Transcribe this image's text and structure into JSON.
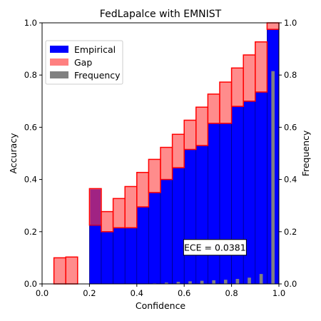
{
  "chart_data": {
    "type": "bar",
    "title": "FedLapalce with EMNIST",
    "xlabel": "Confidence",
    "ylabel": "Accuracy",
    "y2label": "Frequency",
    "xlim": [
      0.0,
      1.0
    ],
    "ylim": [
      0.0,
      1.0
    ],
    "y2lim": [
      0.0,
      1.0
    ],
    "xticks": [
      "0.0",
      "0.2",
      "0.4",
      "0.6",
      "0.8",
      "1.0"
    ],
    "yticks": [
      "0.0",
      "0.2",
      "0.4",
      "0.6",
      "0.8",
      "1.0"
    ],
    "y2ticks": [
      "0.0",
      "0.2",
      "0.4",
      "0.6",
      "0.8",
      "1.0"
    ],
    "bin_width": 0.05,
    "bin_starts": [
      0.05,
      0.1,
      0.2,
      0.25,
      0.3,
      0.35,
      0.4,
      0.45,
      0.5,
      0.55,
      0.6,
      0.65,
      0.7,
      0.75,
      0.8,
      0.85,
      0.9,
      0.95
    ],
    "series": [
      {
        "name": "Empirical",
        "color": "#0000ff",
        "values": [
          0.0,
          0.0,
          0.225,
          0.2,
          0.215,
          0.215,
          0.295,
          0.35,
          0.4,
          0.445,
          0.515,
          0.53,
          0.615,
          0.615,
          0.68,
          0.7,
          0.735,
          0.975
        ]
      },
      {
        "name": "Gap",
        "color": "#ff8080",
        "edge": "#ff0000",
        "bottoms": [
          0.0,
          0.0,
          0.225,
          0.2,
          0.215,
          0.215,
          0.295,
          0.35,
          0.4,
          0.445,
          0.515,
          0.53,
          0.615,
          0.615,
          0.68,
          0.7,
          0.735,
          0.975
        ],
        "tops": [
          0.1,
          0.103,
          0.365,
          0.277,
          0.327,
          0.373,
          0.427,
          0.477,
          0.523,
          0.573,
          0.627,
          0.677,
          0.727,
          0.773,
          0.827,
          0.877,
          0.927,
          1.0
        ]
      },
      {
        "name": "Frequency",
        "color": "#808080",
        "x": [
          0.475,
          0.525,
          0.575,
          0.625,
          0.675,
          0.725,
          0.775,
          0.825,
          0.875,
          0.925,
          0.975
        ],
        "values": [
          0.002,
          0.005,
          0.008,
          0.01,
          0.012,
          0.014,
          0.016,
          0.019,
          0.024,
          0.038,
          0.815
        ]
      }
    ],
    "legend": {
      "position": "upper-left",
      "entries": [
        "Empirical",
        "Gap",
        "Frequency"
      ]
    },
    "annotation": "ECE = 0.0381",
    "grid": false
  }
}
